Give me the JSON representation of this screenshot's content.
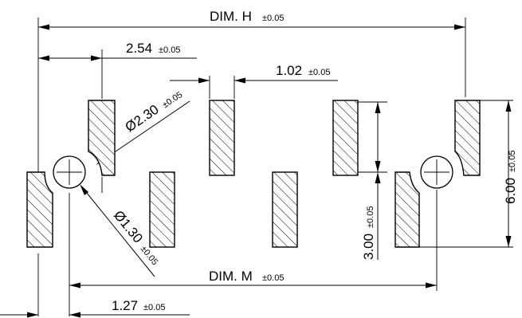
{
  "dimensions": {
    "dim_h": {
      "name": "DIM. H",
      "tol": "±0.05"
    },
    "dim_m": {
      "name": "DIM. M",
      "tol": "±0.05"
    },
    "pitch_small": {
      "value": "1.27",
      "tol": "±0.05"
    },
    "pitch_large": {
      "value": "2.54",
      "tol": "±0.05"
    },
    "pad_width": {
      "value": "1.02",
      "tol": "±0.05"
    },
    "large_hole_dia": {
      "value": "Ø2.30",
      "tol": "±0.05"
    },
    "small_hole_dia": {
      "value": "Ø1.30",
      "tol": "±0.05"
    },
    "pad_height": {
      "value": "3.00",
      "tol": "±0.05"
    },
    "total_height": {
      "value": "6.00",
      "tol": "±0.05"
    }
  }
}
